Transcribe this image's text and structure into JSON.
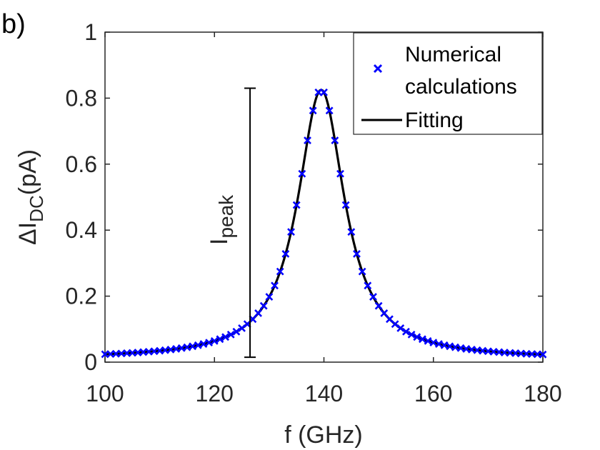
{
  "panel_label": "b)",
  "chart_data": {
    "type": "line",
    "title": "",
    "xlabel": "f (GHz)",
    "ylabel": {
      "delta": "Δ",
      "main": "I",
      "subscript": "DC",
      "unit": "(pA)"
    },
    "xlim": [
      100,
      180
    ],
    "ylim": [
      0,
      1
    ],
    "x_ticks": [
      100,
      120,
      140,
      160,
      180
    ],
    "y_ticks": [
      0,
      0.2,
      0.4,
      0.6,
      0.8,
      1
    ],
    "x_tick_labels": [
      "100",
      "120",
      "140",
      "160",
      "180"
    ],
    "y_tick_labels": [
      "0",
      "0.2",
      "0.4",
      "0.6",
      "0.8",
      "1"
    ],
    "series": [
      {
        "name": "Numerical calculations",
        "kind": "scatter",
        "marker": "x",
        "color": "#0000ff",
        "x_start": 100,
        "x_end": 180,
        "step": 1,
        "model": "lorentzian"
      },
      {
        "name": "Fitting",
        "kind": "line",
        "color": "#000000",
        "model": "lorentzian"
      }
    ],
    "model_params": {
      "baseline": 0.01,
      "amplitude": 0.815,
      "center": 139.5,
      "gamma": 5.2
    },
    "annotation": {
      "label_main": "I",
      "label_sub": "peak",
      "x": 126.5,
      "y_bottom": 0.015,
      "y_top": 0.83
    },
    "legend": {
      "placement": "top-right",
      "entries": [
        {
          "label_line1": "Numerical",
          "label_line2": "calculations",
          "marker": "x",
          "color": "#0000ff"
        },
        {
          "label_line1": "Fitting",
          "marker": "line",
          "color": "#000000"
        }
      ]
    }
  }
}
